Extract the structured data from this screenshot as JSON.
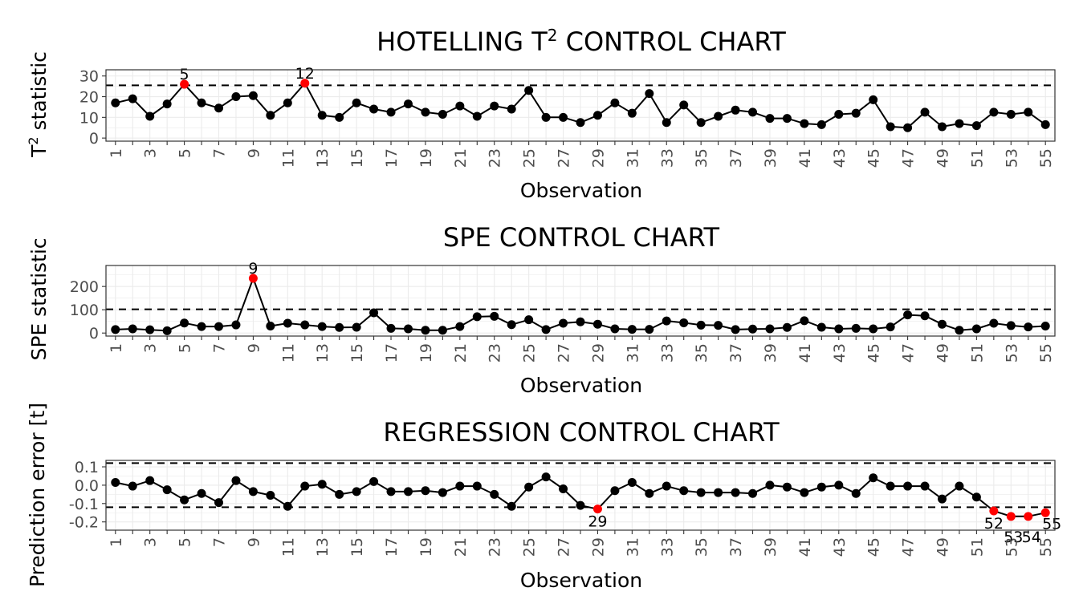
{
  "chart_data": [
    {
      "type": "line",
      "title": "HOTELLING T",
      "title_superscript": "2",
      "title_suffix": " CONTROL CHART",
      "xlabel": "Observation",
      "ylabel": "T",
      "ylabel_superscript": "2",
      "ylabel_suffix": " statistic",
      "x": [
        1,
        2,
        3,
        4,
        5,
        6,
        7,
        8,
        9,
        10,
        11,
        12,
        13,
        14,
        15,
        16,
        17,
        18,
        19,
        20,
        21,
        22,
        23,
        24,
        25,
        26,
        27,
        28,
        29,
        30,
        31,
        32,
        33,
        34,
        35,
        36,
        37,
        38,
        39,
        40,
        41,
        42,
        43,
        44,
        45,
        46,
        47,
        48,
        49,
        50,
        51,
        52,
        53,
        54,
        55
      ],
      "values": [
        17,
        19,
        10.5,
        16.5,
        26,
        17,
        14.5,
        20,
        20.5,
        11,
        17,
        26.5,
        11,
        10,
        17,
        14,
        12.5,
        16.5,
        12.5,
        11.5,
        15.5,
        10.5,
        15.5,
        14,
        23,
        10,
        10,
        7.5,
        11,
        17,
        12,
        21.5,
        7.5,
        16,
        7.5,
        10.5,
        13.5,
        12.5,
        9.5,
        9.5,
        7,
        6.5,
        11.5,
        12,
        18.5,
        5.5,
        5,
        12.5,
        5.5,
        7,
        6,
        12.5,
        11.5,
        12.5,
        6.5
      ],
      "ylim": [
        -1.5,
        33
      ],
      "yticks": [
        0,
        10,
        20,
        30
      ],
      "xticks": [
        1,
        3,
        5,
        7,
        9,
        11,
        13,
        15,
        17,
        19,
        21,
        23,
        25,
        27,
        29,
        31,
        33,
        35,
        37,
        39,
        41,
        43,
        45,
        47,
        49,
        51,
        53,
        55
      ],
      "limits": [
        25.5
      ],
      "flagged": [
        5,
        12
      ],
      "flag_labels": [
        "5",
        "12"
      ],
      "grid": true,
      "colors": {
        "point": "#000000",
        "flagged": "#ff0000",
        "grid": "#ebebeb",
        "border": "#333333"
      }
    },
    {
      "type": "line",
      "title": "SPE CONTROL CHART",
      "xlabel": "Observation",
      "ylabel": "SPE statistic",
      "x": [
        1,
        2,
        3,
        4,
        5,
        6,
        7,
        8,
        9,
        10,
        11,
        12,
        13,
        14,
        15,
        16,
        17,
        18,
        19,
        20,
        21,
        22,
        23,
        24,
        25,
        26,
        27,
        28,
        29,
        30,
        31,
        32,
        33,
        34,
        35,
        36,
        37,
        38,
        39,
        40,
        41,
        42,
        43,
        44,
        45,
        46,
        47,
        48,
        49,
        50,
        51,
        52,
        53,
        54,
        55
      ],
      "values": [
        15,
        18,
        14,
        10,
        43,
        28,
        28,
        35,
        235,
        30,
        42,
        35,
        28,
        24,
        25,
        87,
        20,
        18,
        12,
        12,
        28,
        70,
        72,
        36,
        57,
        15,
        42,
        48,
        38,
        18,
        16,
        16,
        52,
        44,
        34,
        33,
        15,
        17,
        18,
        24,
        53,
        25,
        18,
        20,
        18,
        26,
        78,
        74,
        38,
        12,
        18,
        42,
        32,
        26,
        30
      ],
      "ylim": [
        -13,
        290
      ],
      "yticks": [
        0,
        100,
        200
      ],
      "xticks": [
        1,
        3,
        5,
        7,
        9,
        11,
        13,
        15,
        17,
        19,
        21,
        23,
        25,
        27,
        29,
        31,
        33,
        35,
        37,
        39,
        41,
        43,
        45,
        47,
        49,
        51,
        53,
        55
      ],
      "limits": [
        102
      ],
      "flagged": [
        9
      ],
      "flag_labels": [
        "9"
      ],
      "grid": true,
      "colors": {
        "point": "#000000",
        "flagged": "#ff0000",
        "grid": "#ebebeb",
        "border": "#333333"
      }
    },
    {
      "type": "line",
      "title": "REGRESSION CONTROL CHART",
      "xlabel": "Observation",
      "ylabel": "Prediction error [t]",
      "x": [
        1,
        2,
        3,
        4,
        5,
        6,
        7,
        8,
        9,
        10,
        11,
        12,
        13,
        14,
        15,
        16,
        17,
        18,
        19,
        20,
        21,
        22,
        23,
        24,
        25,
        26,
        27,
        28,
        29,
        30,
        31,
        32,
        33,
        34,
        35,
        36,
        37,
        38,
        39,
        40,
        41,
        42,
        43,
        44,
        45,
        46,
        47,
        48,
        49,
        50,
        51,
        52,
        53,
        54,
        55
      ],
      "values": [
        0.015,
        -0.005,
        0.025,
        -0.025,
        -0.08,
        -0.045,
        -0.095,
        0.025,
        -0.035,
        -0.055,
        -0.115,
        -0.005,
        0.005,
        -0.05,
        -0.035,
        0.02,
        -0.035,
        -0.035,
        -0.03,
        -0.04,
        -0.005,
        -0.005,
        -0.05,
        -0.115,
        -0.01,
        0.045,
        -0.02,
        -0.11,
        -0.13,
        -0.03,
        0.015,
        -0.045,
        -0.005,
        -0.03,
        -0.04,
        -0.04,
        -0.04,
        -0.045,
        0,
        -0.01,
        -0.04,
        -0.01,
        0,
        -0.045,
        0.04,
        -0.005,
        -0.005,
        -0.005,
        -0.075,
        -0.005,
        -0.065,
        -0.14,
        -0.17,
        -0.17,
        -0.15
      ],
      "ylim": [
        -0.245,
        0.135
      ],
      "yticks": [
        -0.2,
        -0.1,
        0.0,
        0.1
      ],
      "ytick_labels": [
        "-0.2",
        "-0.1",
        "0.0",
        "0.1"
      ],
      "xticks": [
        1,
        3,
        5,
        7,
        9,
        11,
        13,
        15,
        17,
        19,
        21,
        23,
        25,
        27,
        29,
        31,
        33,
        35,
        37,
        39,
        41,
        43,
        45,
        47,
        49,
        51,
        53,
        55
      ],
      "limits": [
        0.12,
        -0.12
      ],
      "flagged": [
        29,
        52,
        53,
        54,
        55
      ],
      "flag_labels": [
        "29",
        "52",
        "53",
        "54",
        "55"
      ],
      "grid": true,
      "colors": {
        "point": "#000000",
        "flagged": "#ff0000",
        "grid": "#ebebeb",
        "border": "#333333"
      }
    }
  ]
}
